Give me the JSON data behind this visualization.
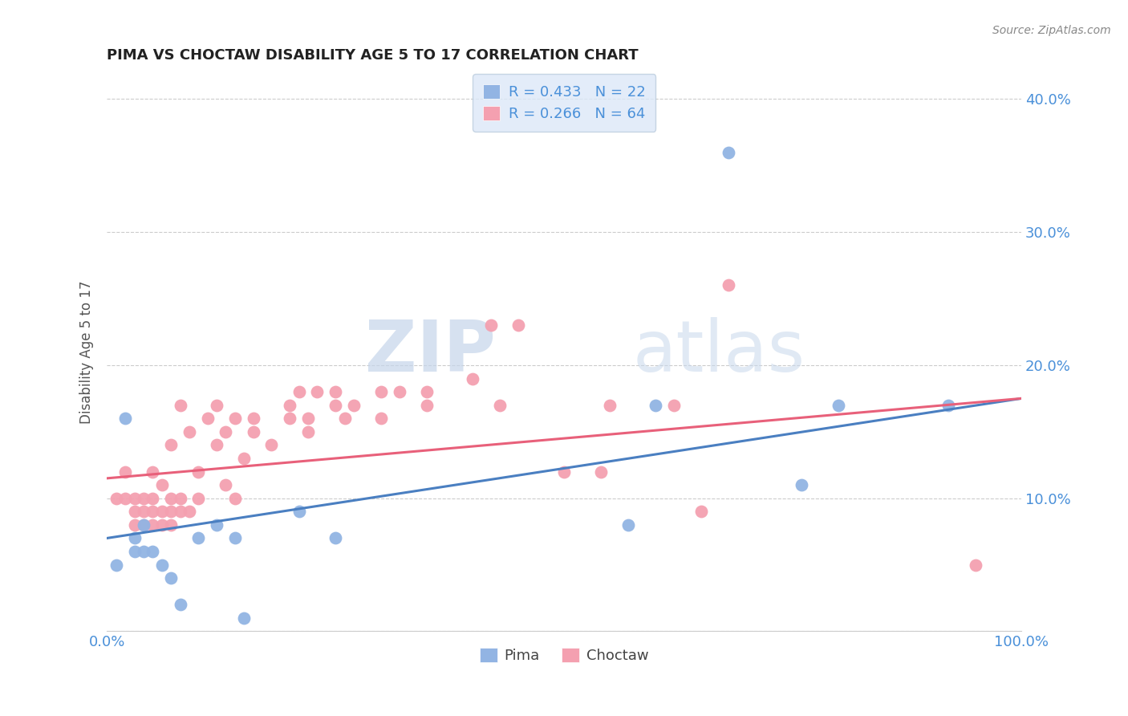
{
  "title": "PIMA VS CHOCTAW DISABILITY AGE 5 TO 17 CORRELATION CHART",
  "source": "Source: ZipAtlas.com",
  "ylabel": "Disability Age 5 to 17",
  "xlim": [
    0,
    1.0
  ],
  "ylim": [
    0,
    0.42
  ],
  "xticks": [
    0.0,
    0.2,
    0.4,
    0.6,
    0.8,
    1.0
  ],
  "xticklabels": [
    "0.0%",
    "",
    "",
    "",
    "",
    "100.0%"
  ],
  "yticks": [
    0.0,
    0.1,
    0.2,
    0.3,
    0.4
  ],
  "yticklabels": [
    "",
    "10.0%",
    "20.0%",
    "30.0%",
    "40.0%"
  ],
  "pima_color": "#92b4e3",
  "choctaw_color": "#f4a0b0",
  "pima_line_color": "#4a7fc1",
  "choctaw_line_color": "#e8607a",
  "pima_R": 0.433,
  "pima_N": 22,
  "choctaw_R": 0.266,
  "choctaw_N": 64,
  "legend_box_color": "#dce8f8",
  "watermark_zip": "ZIP",
  "watermark_atlas": "atlas",
  "background_color": "#ffffff",
  "pima_x": [
    0.01,
    0.02,
    0.03,
    0.03,
    0.04,
    0.04,
    0.05,
    0.06,
    0.07,
    0.08,
    0.1,
    0.12,
    0.14,
    0.15,
    0.21,
    0.25,
    0.57,
    0.6,
    0.68,
    0.76,
    0.8,
    0.92
  ],
  "pima_y": [
    0.05,
    0.16,
    0.06,
    0.07,
    0.06,
    0.08,
    0.06,
    0.05,
    0.04,
    0.02,
    0.07,
    0.08,
    0.07,
    0.01,
    0.09,
    0.07,
    0.08,
    0.17,
    0.36,
    0.11,
    0.17,
    0.17
  ],
  "choctaw_x": [
    0.01,
    0.02,
    0.02,
    0.03,
    0.03,
    0.03,
    0.04,
    0.04,
    0.04,
    0.05,
    0.05,
    0.05,
    0.05,
    0.06,
    0.06,
    0.06,
    0.07,
    0.07,
    0.07,
    0.07,
    0.08,
    0.08,
    0.08,
    0.09,
    0.09,
    0.1,
    0.1,
    0.11,
    0.12,
    0.12,
    0.13,
    0.13,
    0.14,
    0.14,
    0.15,
    0.16,
    0.16,
    0.18,
    0.2,
    0.2,
    0.21,
    0.22,
    0.22,
    0.23,
    0.25,
    0.25,
    0.26,
    0.27,
    0.3,
    0.3,
    0.32,
    0.35,
    0.35,
    0.4,
    0.42,
    0.43,
    0.45,
    0.5,
    0.54,
    0.55,
    0.62,
    0.65,
    0.68,
    0.95
  ],
  "choctaw_y": [
    0.1,
    0.1,
    0.12,
    0.08,
    0.09,
    0.1,
    0.08,
    0.09,
    0.1,
    0.08,
    0.09,
    0.1,
    0.12,
    0.08,
    0.09,
    0.11,
    0.08,
    0.09,
    0.1,
    0.14,
    0.09,
    0.1,
    0.17,
    0.09,
    0.15,
    0.1,
    0.12,
    0.16,
    0.14,
    0.17,
    0.11,
    0.15,
    0.1,
    0.16,
    0.13,
    0.15,
    0.16,
    0.14,
    0.16,
    0.17,
    0.18,
    0.15,
    0.16,
    0.18,
    0.17,
    0.18,
    0.16,
    0.17,
    0.16,
    0.18,
    0.18,
    0.17,
    0.18,
    0.19,
    0.23,
    0.17,
    0.23,
    0.12,
    0.12,
    0.17,
    0.17,
    0.09,
    0.26,
    0.05
  ],
  "pima_line_x0": 0.0,
  "pima_line_x1": 1.0,
  "pima_line_y0": 0.07,
  "pima_line_y1": 0.175,
  "choctaw_line_x0": 0.0,
  "choctaw_line_x1": 1.0,
  "choctaw_line_y0": 0.115,
  "choctaw_line_y1": 0.175
}
